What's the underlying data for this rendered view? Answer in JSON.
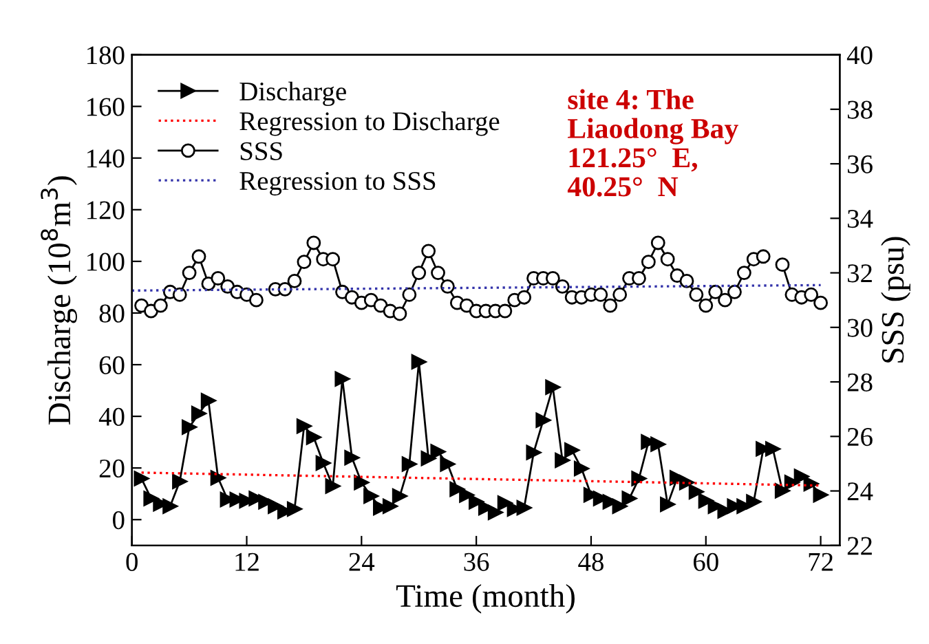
{
  "chart_data": {
    "type": "line",
    "xlabel": "Time (month)",
    "ylabel": "Discharge (10$^{8}$m$^{3}$)",
    "y2label": "SSS (psu)",
    "x": [
      1,
      2,
      3,
      4,
      5,
      6,
      7,
      8,
      9,
      10,
      11,
      12,
      13,
      14,
      15,
      16,
      17,
      18,
      19,
      20,
      21,
      22,
      23,
      24,
      25,
      26,
      27,
      28,
      29,
      30,
      31,
      32,
      33,
      34,
      35,
      36,
      37,
      38,
      39,
      40,
      41,
      42,
      43,
      44,
      45,
      46,
      47,
      48,
      49,
      50,
      51,
      52,
      53,
      54,
      55,
      56,
      57,
      58,
      59,
      60,
      61,
      62,
      63,
      64,
      65,
      66,
      67,
      68,
      69,
      70,
      71,
      72
    ],
    "series": [
      {
        "name": "Discharge",
        "marker": "triangle",
        "color": "#000000",
        "values": [
          15.9,
          8.2,
          6.1,
          5.2,
          14.8,
          35.8,
          41.1,
          46.1,
          16.2,
          7.8,
          7.8,
          7.3,
          8.2,
          6.9,
          5.2,
          3.2,
          4.1,
          36.2,
          31.9,
          21.9,
          13,
          54.5,
          24,
          14.4,
          9.1,
          4.6,
          5.2,
          9.1,
          21.5,
          61.1,
          23.7,
          26.3,
          21.5,
          11.8,
          9.5,
          6.9,
          4.6,
          2.8,
          6.4,
          4.1,
          4.6,
          26,
          38.5,
          51.3,
          23,
          26.9,
          19.8,
          9.6,
          8.2,
          6.9,
          5.2,
          8.2,
          15.9,
          30.1,
          29.2,
          5.9,
          16.2,
          14.4,
          10.8,
          7.3,
          5.2,
          3.4,
          5.2,
          5.2,
          6.9,
          27.4,
          27.4,
          11.2,
          14.4,
          16.7,
          13.9,
          9.6
        ]
      },
      {
        "name": "Regression to Discharge",
        "marker": "none",
        "line_style": "dotted",
        "color": "#ff0000",
        "x": [
          1,
          72
        ],
        "values": [
          18.2,
          13.2
        ]
      },
      {
        "name": "SSS",
        "axis": "y2",
        "marker": "circle",
        "color": "#000000",
        "values": [
          30.8,
          30.6,
          30.8,
          31.3,
          31.2,
          32.0,
          32.6,
          31.6,
          31.8,
          31.5,
          31.3,
          31.2,
          31.0,
          null,
          31.4,
          31.4,
          31.7,
          32.4,
          33.1,
          32.5,
          32.5,
          31.3,
          31.1,
          30.9,
          31.0,
          30.8,
          30.6,
          30.5,
          31.2,
          32.0,
          32.8,
          32.0,
          31.5,
          30.9,
          30.8,
          30.6,
          30.6,
          30.6,
          30.6,
          31.0,
          31.1,
          31.8,
          31.8,
          31.8,
          31.5,
          31.1,
          31.1,
          31.2,
          31.2,
          30.8,
          31.2,
          31.8,
          31.8,
          32.4,
          33.1,
          32.5,
          31.9,
          31.7,
          31.2,
          30.8,
          31.3,
          31.0,
          31.3,
          32.0,
          32.5,
          32.6,
          null,
          32.3,
          31.2,
          31.1,
          31.2,
          30.9
        ]
      },
      {
        "name": "Regression to SSS",
        "axis": "y2",
        "marker": "none",
        "line_style": "dotted",
        "color": "#3333aa",
        "x": [
          0,
          72
        ],
        "values": [
          31.35,
          31.55
        ]
      }
    ],
    "xlim": [
      0,
      74
    ],
    "xticks": [
      0,
      12,
      24,
      36,
      48,
      60,
      72
    ],
    "ylim": [
      -10,
      180
    ],
    "yticks": [
      0,
      20,
      40,
      60,
      80,
      100,
      120,
      140,
      160,
      180
    ],
    "y2lim": [
      22,
      40
    ],
    "y2ticks": [
      22,
      24,
      26,
      28,
      30,
      32,
      34,
      36,
      38,
      40
    ],
    "grid": false,
    "legend": "top left",
    "annotations": [
      "site 4: The\nLiaodong Bay\n121.25°  E,\n40.25°  N"
    ]
  }
}
